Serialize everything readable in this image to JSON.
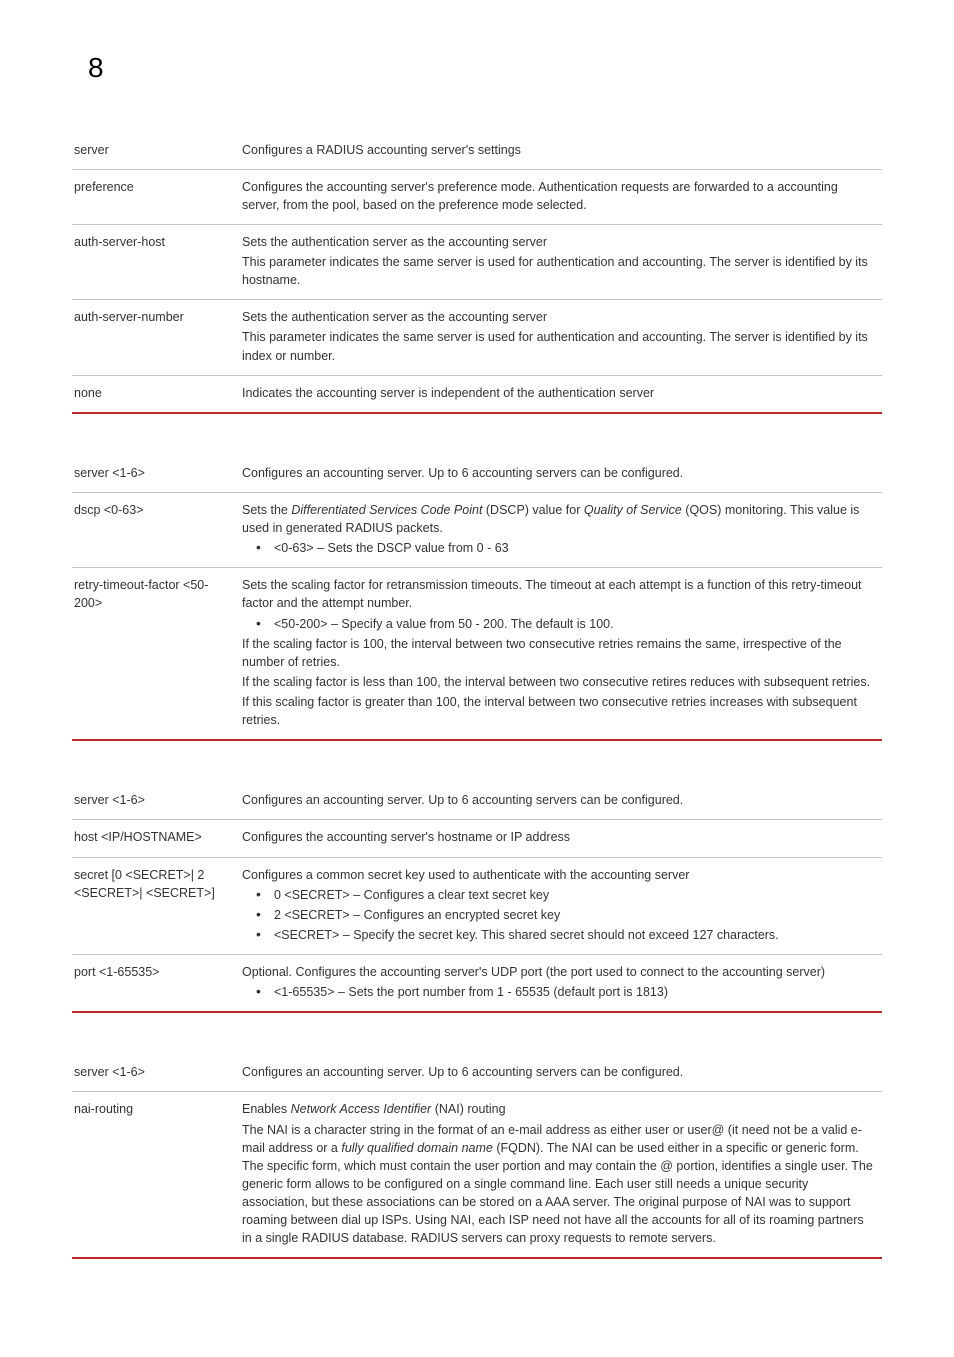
{
  "page_number": "8",
  "accent_color": "#c1252d",
  "rule_color": "#c7c7c7",
  "font_size_body": 12.5,
  "font_size_heading": 28,
  "tables": {
    "t1": {
      "rows": [
        {
          "param": "server",
          "desc": [
            {
              "type": "p",
              "text": "Configures a RADIUS accounting server's settings"
            }
          ]
        },
        {
          "param": "preference",
          "desc": [
            {
              "type": "p",
              "text": "Configures the accounting server's preference mode. Authentication requests are forwarded to a accounting server, from the pool, based on the preference mode selected."
            }
          ]
        },
        {
          "param": "auth-server-host",
          "desc": [
            {
              "type": "p",
              "text": "Sets the authentication server as the accounting server"
            },
            {
              "type": "p",
              "text": "This parameter indicates the same server is used for authentication and accounting. The server is identified by its hostname."
            }
          ]
        },
        {
          "param": "auth-server-number",
          "desc": [
            {
              "type": "p",
              "text": "Sets the authentication server as the accounting server"
            },
            {
              "type": "p",
              "text": "This parameter indicates the same server is used for authentication and accounting. The server is identified by its index or number."
            }
          ]
        },
        {
          "param": "none",
          "desc": [
            {
              "type": "p",
              "text": "Indicates the accounting server is independent of the authentication server"
            }
          ]
        }
      ]
    },
    "t2": {
      "rows": [
        {
          "param": "server <1-6>",
          "desc": [
            {
              "type": "p",
              "text": "Configures an accounting server. Up to 6 accounting servers can be configured."
            }
          ]
        },
        {
          "param": "dscp <0-63>",
          "desc": [
            {
              "type": "p",
              "runs": [
                {
                  "t": "Sets the "
                },
                {
                  "t": "Differentiated Services Code Point",
                  "i": true
                },
                {
                  "t": " (DSCP) value for "
                },
                {
                  "t": "Quality of Service",
                  "i": true
                },
                {
                  "t": " (QOS) monitoring. This value is used in generated RADIUS packets."
                }
              ]
            },
            {
              "type": "ul",
              "items": [
                "<0-63> – Sets the DSCP value from 0 - 63"
              ]
            }
          ]
        },
        {
          "param": "retry-timeout-factor <50-200>",
          "desc": [
            {
              "type": "p",
              "text": "Sets the scaling factor for retransmission timeouts. The timeout at each attempt is a function of this retry-timeout factor and the attempt number."
            },
            {
              "type": "ul",
              "items": [
                "<50-200> – Specify a value from 50 - 200. The default is 100."
              ]
            },
            {
              "type": "p",
              "text": "If the scaling factor is 100, the interval between two consecutive retries remains the same, irrespective of the number of retries."
            },
            {
              "type": "p",
              "text": "If the scaling factor is less than 100, the interval between two consecutive retires reduces with subsequent retries."
            },
            {
              "type": "p",
              "text": "If this scaling factor is greater than 100, the interval between two consecutive retries increases with subsequent retries."
            }
          ]
        }
      ]
    },
    "t3": {
      "rows": [
        {
          "param": "server <1-6>",
          "desc": [
            {
              "type": "p",
              "text": "Configures an accounting server. Up to 6 accounting servers can be configured."
            }
          ]
        },
        {
          "param": "host <IP/HOSTNAME>",
          "desc": [
            {
              "type": "p",
              "text": "Configures the accounting server's hostname or IP address"
            }
          ]
        },
        {
          "param": "secret [0 <SECRET>| 2 <SECRET>| <SECRET>]",
          "desc": [
            {
              "type": "p",
              "text": "Configures a common secret key used to authenticate with the accounting server"
            },
            {
              "type": "ul",
              "items": [
                "0 <SECRET> – Configures a clear text secret key",
                "2 <SECRET> – Configures an encrypted secret key",
                "<SECRET> – Specify the secret key. This shared secret should not exceed 127 characters."
              ]
            }
          ]
        },
        {
          "param": "port <1-65535>",
          "desc": [
            {
              "type": "p",
              "text": "Optional. Configures the accounting server's UDP port (the port used to connect to the accounting server)"
            },
            {
              "type": "ul",
              "items": [
                "<1-65535> – Sets the port number from 1 - 65535 (default port is 1813)"
              ]
            }
          ]
        }
      ]
    },
    "t4": {
      "rows": [
        {
          "param": "server <1-6>",
          "desc": [
            {
              "type": "p",
              "text": "Configures an accounting server. Up to 6 accounting servers can be configured."
            }
          ]
        },
        {
          "param": "nai-routing",
          "desc": [
            {
              "type": "p",
              "runs": [
                {
                  "t": "Enables "
                },
                {
                  "t": "Network Access Identifier",
                  "i": true
                },
                {
                  "t": " (NAI) routing"
                }
              ]
            },
            {
              "type": "p",
              "runs": [
                {
                  "t": "The NAI is a character string in the format of an e-mail address as either user or user@ (it need not be a valid e-mail address or a "
                },
                {
                  "t": "fully qualified domain name",
                  "i": true
                },
                {
                  "t": " (FQDN). The NAI can be used either in a specific or generic form. The specific form, which must contain the user portion and may contain the @ portion, identifies a single user. The generic form allows to be configured on a single command line. Each user still needs a unique security association, but these associations can be stored on a AAA server. The original purpose of NAI was to support roaming between dial up ISPs. Using NAI, each ISP need not have all the accounts for all of its roaming partners in a single RADIUS database. RADIUS servers can proxy requests to remote servers."
                }
              ]
            }
          ]
        }
      ]
    }
  }
}
